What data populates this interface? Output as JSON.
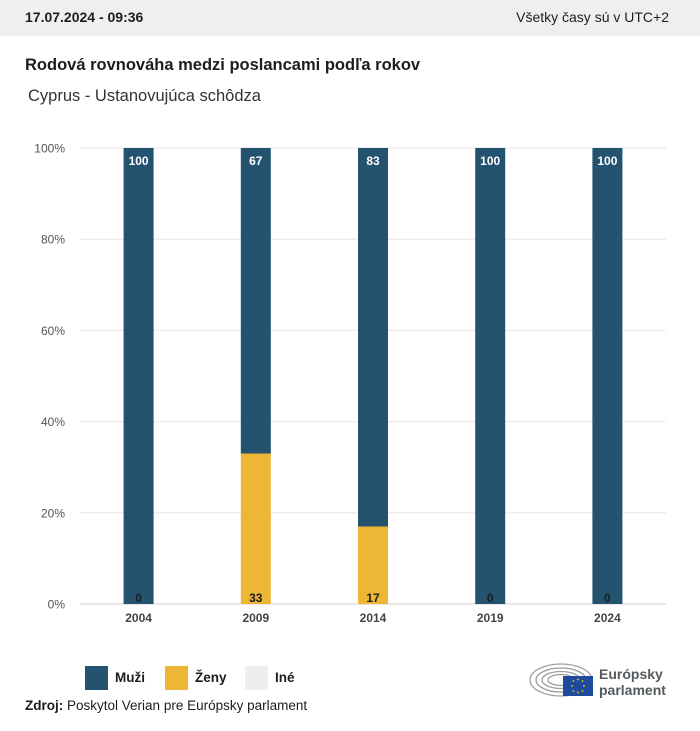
{
  "header": {
    "timestamp": "17.07.2024 - 09:36",
    "timezone_note": "Všetky časy sú v UTC+2"
  },
  "title": "Rodová rovnováha medzi poslancami podľa rokov",
  "subtitle": "Cyprus - Ustanovujúca schôdza",
  "chart_data": {
    "type": "bar",
    "stacked": true,
    "categories": [
      "2004",
      "2009",
      "2014",
      "2019",
      "2024"
    ],
    "series": [
      {
        "name": "Ženy",
        "values": [
          0,
          33,
          17,
          0,
          0
        ],
        "color": "#edb634"
      },
      {
        "name": "Muži",
        "values": [
          100,
          67,
          83,
          100,
          100
        ],
        "color": "#24536f"
      },
      {
        "name": "Iné",
        "values": [
          0,
          0,
          0,
          0,
          0
        ],
        "color": "#eeeeee"
      }
    ],
    "yticks": [
      "0%",
      "20%",
      "40%",
      "60%",
      "80%",
      "100%"
    ],
    "ylim": [
      0,
      100
    ],
    "grid": true,
    "legend_position": "bottom-left"
  },
  "legend": [
    {
      "label": "Muži",
      "color": "#24536f"
    },
    {
      "label": "Ženy",
      "color": "#edb634"
    },
    {
      "label": "Iné",
      "color": "#eeeeee"
    }
  ],
  "source": {
    "label": "Zdroj:",
    "text": "Poskytol Verian pre Európsky parlament"
  },
  "logo": {
    "line1": "Európsky",
    "line2": "parlament"
  }
}
